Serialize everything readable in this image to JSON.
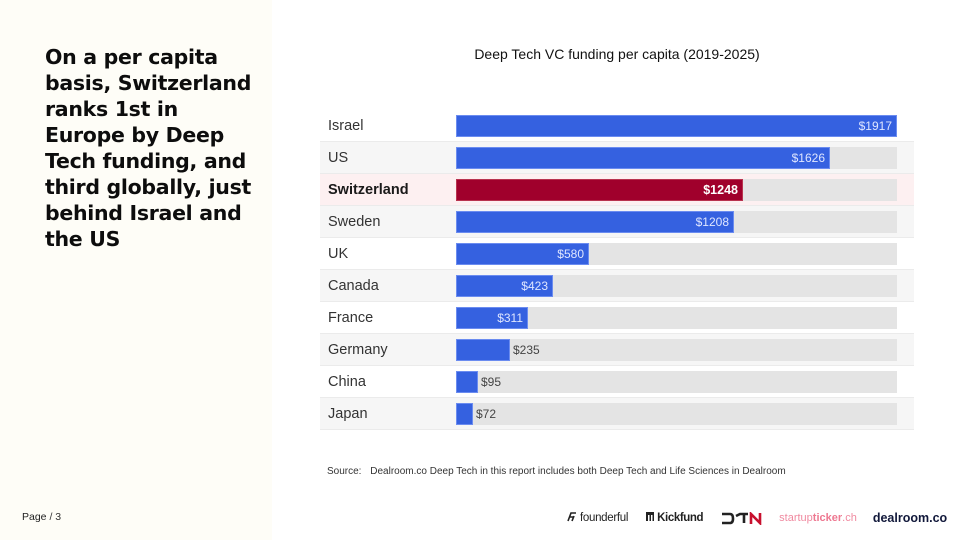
{
  "left_panel": {
    "headline": "On a per capita basis, Switzerland ranks 1st in Europe by Deep Tech funding, and third globally, just behind Israel and the US",
    "page_label": "Page",
    "page_number": "/ 3"
  },
  "chart_data": {
    "type": "bar",
    "orientation": "horizontal",
    "title": "Deep Tech VC funding per capita (2019-2025)",
    "xlabel": "",
    "ylabel": "",
    "unit": "USD per capita",
    "categories": [
      "Israel",
      "US",
      "Switzerland",
      "Sweden",
      "UK",
      "Canada",
      "France",
      "Germany",
      "China",
      "Japan"
    ],
    "values": [
      1917,
      1626,
      1248,
      1208,
      580,
      423,
      311,
      235,
      95,
      72
    ],
    "value_labels": [
      "$1917",
      "$1626",
      "$1248",
      "$1208",
      "$580",
      "$423",
      "$311",
      "$235",
      "$95",
      "$72"
    ],
    "highlight": "Switzerland",
    "xlim": [
      0,
      1917
    ],
    "grid": false,
    "legend": "none",
    "colors": {
      "default": "#3561e0",
      "highlight": "#a0002c",
      "track": "#e4e4e4"
    }
  },
  "source": {
    "label": "Source:",
    "text": "Dealroom.co  Deep Tech in this report includes both Deep Tech and Life Sciences in Dealroom"
  },
  "logos": [
    {
      "name": "founderful",
      "text": "founderful",
      "icon": "founderful-mark-icon"
    },
    {
      "name": "kickfund",
      "text": "Kickfund",
      "icon": "kickfund-mark-icon"
    },
    {
      "name": "dtn",
      "text": "DTN"
    },
    {
      "name": "startupticker",
      "text_plain": "startup",
      "text_bold": "ticker",
      "text_suffix": ".ch"
    },
    {
      "name": "dealroom",
      "text": "dealroom.co"
    }
  ]
}
